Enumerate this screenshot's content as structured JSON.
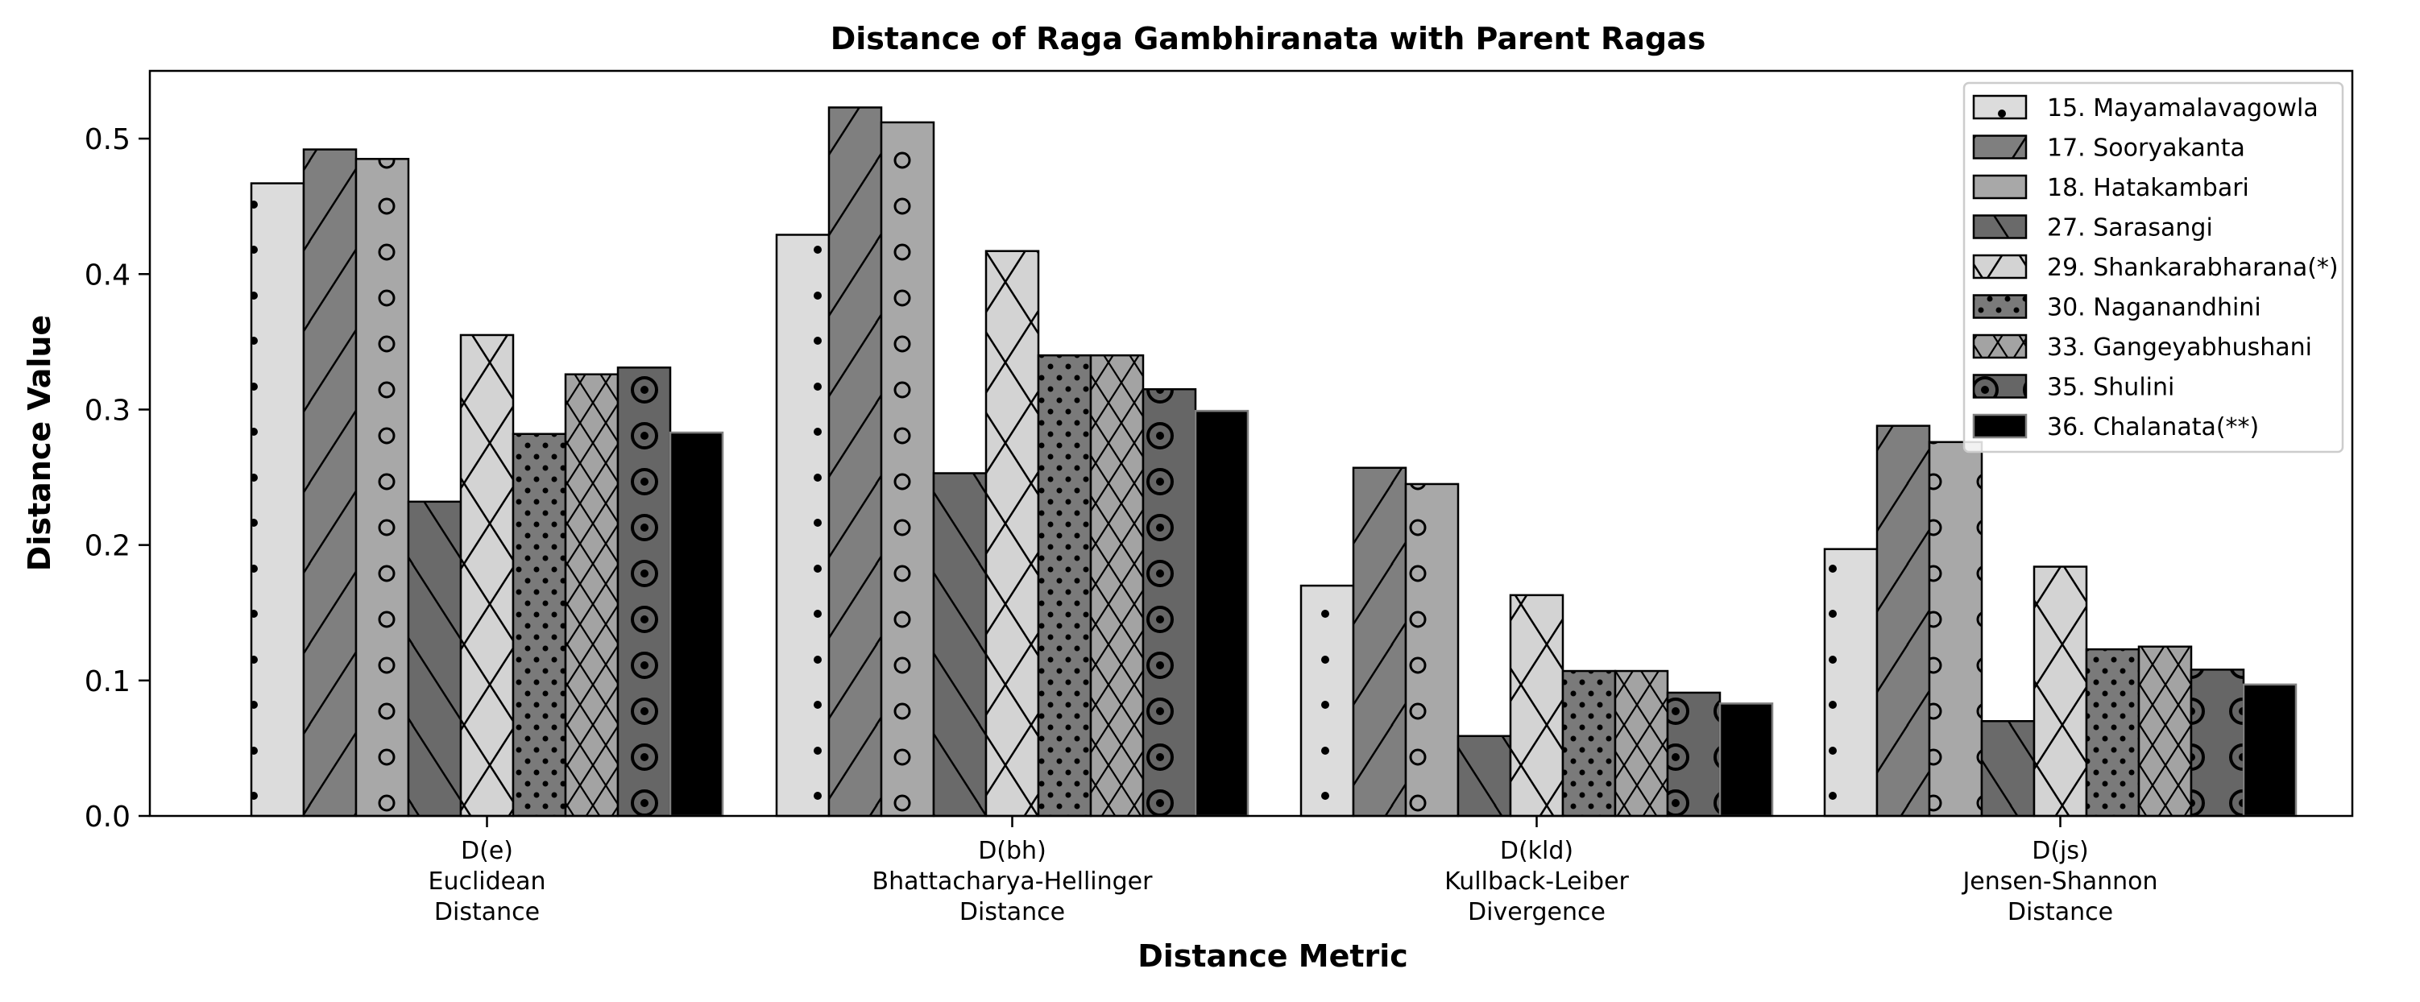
{
  "chart_data": {
    "type": "bar",
    "title": "Distance of Raga Gambhiranata with Parent Ragas",
    "xlabel": "Distance Metric",
    "ylabel": "Distance Value",
    "ylim": [
      0,
      0.55
    ],
    "yticks": [
      "0.0",
      "0.1",
      "0.2",
      "0.3",
      "0.4",
      "0.5"
    ],
    "grid": false,
    "legend_position": "top-right",
    "categories": [
      [
        "D(e)",
        "Euclidean",
        "Distance"
      ],
      [
        "D(bh)",
        "Bhattacharya-Hellinger",
        "Distance"
      ],
      [
        "D(kld)",
        "Kullback-Leiber",
        "Divergence"
      ],
      [
        "D(js)",
        "Jensen-Shannon",
        "Distance"
      ]
    ],
    "series": [
      {
        "name": "15. Mayamalavagowla",
        "color": "#dcdcdc",
        "hatch": "dots",
        "values": [
          0.467,
          0.429,
          0.17,
          0.197
        ]
      },
      {
        "name": "17. Sooryakanta",
        "color": "#7f7f7f",
        "hatch": "diag",
        "values": [
          0.492,
          0.523,
          0.257,
          0.288
        ]
      },
      {
        "name": "18. Hatakambari",
        "color": "#a8a8a8",
        "hatch": "circles",
        "values": [
          0.485,
          0.512,
          0.245,
          0.276
        ]
      },
      {
        "name": "27. Sarasangi",
        "color": "#6a6a6a",
        "hatch": "backdiag",
        "values": [
          0.232,
          0.253,
          0.059,
          0.07
        ]
      },
      {
        "name": "29. Shankarabharana(*)",
        "color": "#d3d3d3",
        "hatch": "bigx",
        "values": [
          0.355,
          0.417,
          0.163,
          0.184
        ]
      },
      {
        "name": "30. Naganandhini",
        "color": "#7a7a7a",
        "hatch": "smalldots",
        "values": [
          0.282,
          0.34,
          0.107,
          0.123
        ]
      },
      {
        "name": "33. Gangeyabhushani",
        "color": "#a3a3a3",
        "hatch": "crosshatch",
        "values": [
          0.326,
          0.34,
          0.107,
          0.125
        ]
      },
      {
        "name": "35. Shulini",
        "color": "#666666",
        "hatch": "rings",
        "values": [
          0.331,
          0.315,
          0.091,
          0.108
        ]
      },
      {
        "name": "36. Chalanata(**)",
        "color": "#000000",
        "hatch": "none",
        "values": [
          0.283,
          0.299,
          0.083,
          0.097
        ]
      }
    ]
  }
}
